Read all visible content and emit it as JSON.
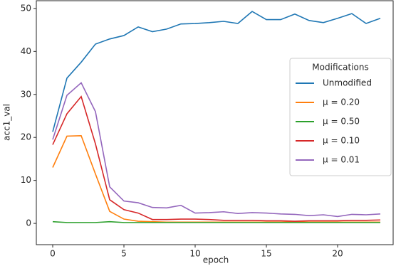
{
  "chart_data": {
    "type": "line",
    "x_label": "epoch",
    "y_label": "acc1_val",
    "x": [
      0,
      1,
      2,
      3,
      4,
      5,
      6,
      7,
      8,
      9,
      10,
      11,
      12,
      13,
      14,
      15,
      16,
      17,
      18,
      19,
      20,
      21,
      22,
      23
    ],
    "series": [
      {
        "name": "Unmodified",
        "color": "#1f77b4",
        "values": [
          21.3,
          33.8,
          37.5,
          41.7,
          42.9,
          43.7,
          45.7,
          44.6,
          45.2,
          46.4,
          46.5,
          46.7,
          47.0,
          46.5,
          49.3,
          47.4,
          47.4,
          48.7,
          47.2,
          46.7,
          47.7,
          48.8,
          46.5,
          47.7
        ]
      },
      {
        "name": "μ = 0.20",
        "color": "#ff7f0e",
        "values": [
          13.0,
          20.3,
          20.4,
          11.5,
          2.8,
          1.0,
          0.5,
          0.4,
          0.3,
          0.3,
          0.3,
          0.3,
          0.3,
          0.3,
          0.3,
          0.3,
          0.3,
          0.3,
          0.3,
          0.3,
          0.3,
          0.3,
          0.3,
          0.3
        ]
      },
      {
        "name": "μ = 0.50",
        "color": "#2ca02c",
        "values": [
          0.4,
          0.2,
          0.2,
          0.2,
          0.4,
          0.2,
          0.2,
          0.2,
          0.2,
          0.2,
          0.2,
          0.2,
          0.2,
          0.2,
          0.2,
          0.2,
          0.2,
          0.2,
          0.2,
          0.2,
          0.2,
          0.2,
          0.2,
          0.2
        ]
      },
      {
        "name": "μ = 0.10",
        "color": "#d62728",
        "values": [
          18.3,
          25.5,
          29.5,
          18.5,
          5.5,
          3.2,
          2.4,
          0.9,
          0.9,
          1.0,
          1.0,
          0.9,
          0.7,
          0.7,
          0.7,
          0.6,
          0.6,
          0.5,
          0.6,
          0.6,
          0.6,
          0.7,
          0.7,
          0.8
        ]
      },
      {
        "name": "μ = 0.01",
        "color": "#9467bd",
        "values": [
          19.5,
          29.8,
          32.7,
          26.0,
          8.5,
          5.2,
          4.8,
          3.7,
          3.6,
          4.2,
          2.4,
          2.5,
          2.7,
          2.3,
          2.5,
          2.4,
          2.2,
          2.1,
          1.8,
          2.0,
          1.6,
          2.1,
          2.0,
          2.2
        ]
      }
    ],
    "legend_title": "Modifications",
    "legend_position": "right",
    "xlim": [
      -1.15,
      23.9
    ],
    "xticks": [
      0,
      5,
      10,
      15,
      20
    ],
    "ylim": [
      -4.95,
      51.8
    ],
    "yticks": [
      0,
      10,
      20,
      30,
      40,
      50
    ],
    "grid": false
  }
}
